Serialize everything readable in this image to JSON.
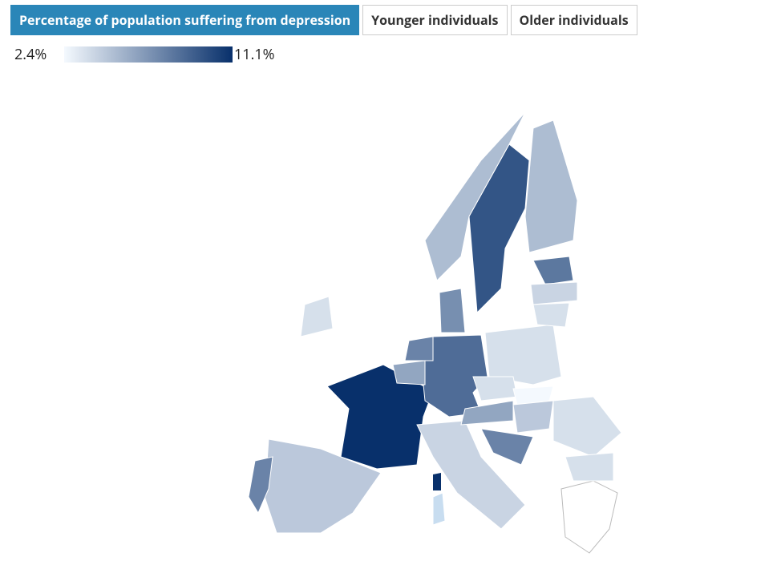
{
  "tabs": [
    "Percentage of population suffering from depression",
    "Younger individuals",
    "Older individuals"
  ],
  "legend": {
    "min": {
      "value": 2.4,
      "label": "2.4%"
    },
    "max": {
      "value": 11.1,
      "label": "11.1%"
    },
    "color_low": "#f4f9fe",
    "color_high": "#08306b"
  },
  "regions": {
    "values": [
      11.1,
      4.5,
      7.5,
      8.5,
      9.5,
      5,
      5,
      3.5,
      4,
      3.5,
      8,
      4,
      3.5,
      3.5,
      2.4,
      6,
      4.5,
      3.5,
      3.5,
      7.5,
      7.5,
      6,
      7
    ]
  }
}
